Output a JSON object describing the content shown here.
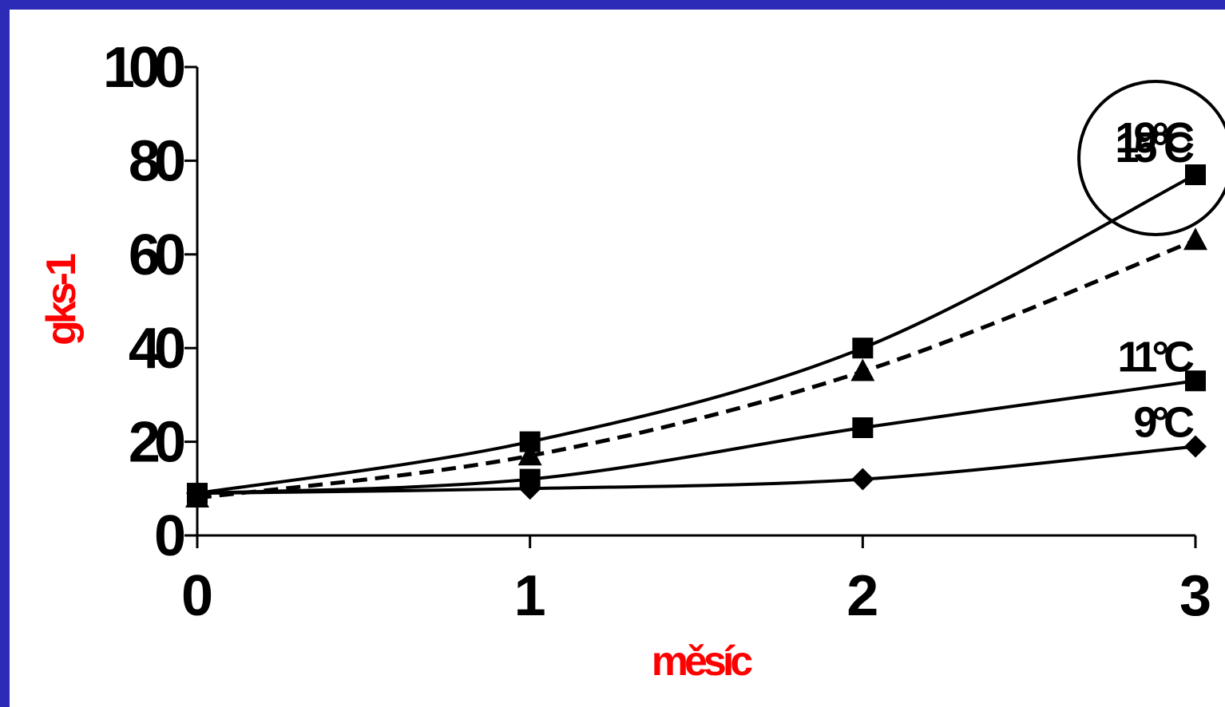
{
  "colors": {
    "frame": "#2b2bb8",
    "background": "#ffffff",
    "axis_title": "#ff0000",
    "ink": "#000000"
  },
  "chart_data": {
    "type": "line",
    "xlabel": "měsíc",
    "ylabel": "gks-1",
    "x": [
      0,
      1,
      2,
      3
    ],
    "xlim": [
      0,
      3
    ],
    "ylim": [
      0,
      100
    ],
    "x_ticks": [
      "0",
      "1",
      "2",
      "3"
    ],
    "y_ticks": [
      "0",
      "20",
      "40",
      "60",
      "80",
      "100"
    ],
    "grid": false,
    "legend": "none",
    "series": [
      {
        "name": "15°C",
        "values": [
          9,
          20,
          40,
          77
        ],
        "marker": "square",
        "line": "solid",
        "highlighted": true
      },
      {
        "name": "19°C",
        "values": [
          8,
          17,
          35,
          63
        ],
        "marker": "triangle",
        "line": "dashed"
      },
      {
        "name": "11°C",
        "values": [
          9,
          12,
          23,
          33
        ],
        "marker": "square",
        "line": "solid"
      },
      {
        "name": "9°C",
        "values": [
          9,
          10,
          12,
          19
        ],
        "marker": "diamond",
        "line": "solid"
      }
    ]
  }
}
